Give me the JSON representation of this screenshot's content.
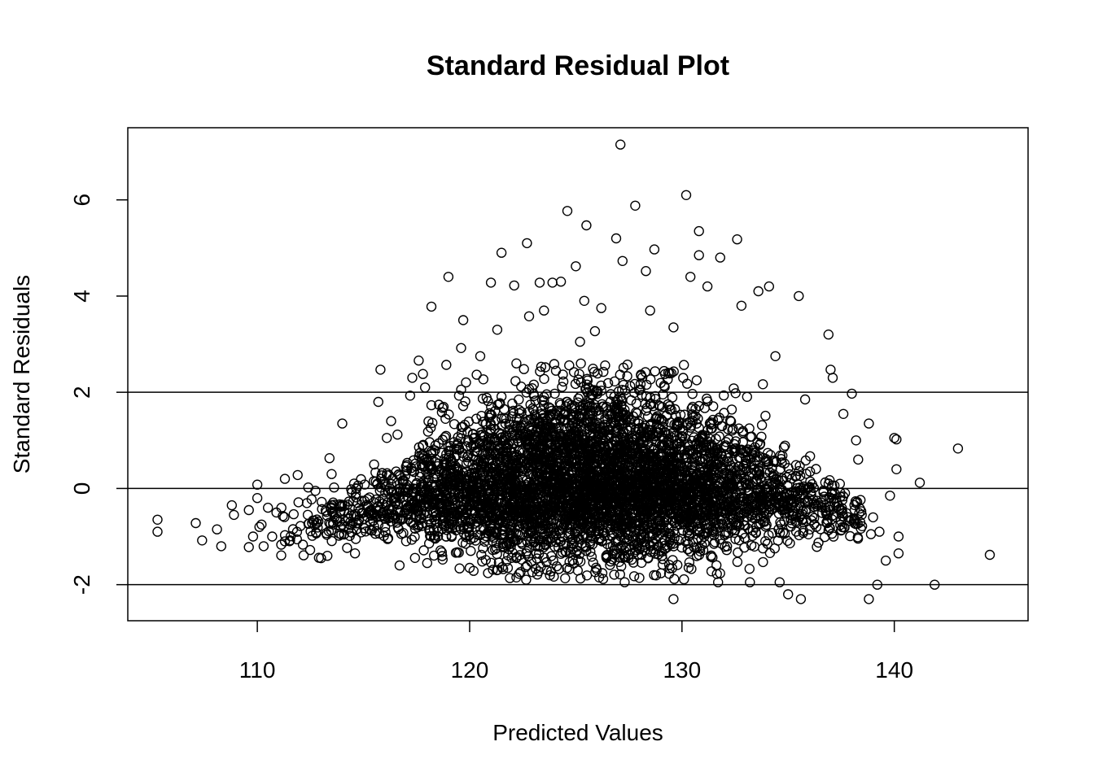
{
  "chart_data": {
    "type": "scatter",
    "title": "Standard Residual Plot",
    "xlabel": "Predicted Values",
    "ylabel": "Standard Residuals",
    "xlim": [
      103.9,
      146.3
    ],
    "ylim": [
      -2.75,
      7.5
    ],
    "x_ticks": [
      110,
      120,
      130,
      140
    ],
    "x_tick_labels": [
      "110",
      "120",
      "130",
      "140"
    ],
    "y_ticks": [
      -2,
      0,
      2,
      4,
      6
    ],
    "y_tick_labels": [
      "-2",
      "0",
      "2",
      "4",
      "6"
    ],
    "reference_lines": [
      -2,
      0,
      2
    ],
    "grid": false,
    "legend": "none",
    "marker": "open-circle",
    "colors": {
      "points": "#000000",
      "lines": "#000000",
      "background": "#ffffff"
    },
    "dense_cloud": {
      "n": 5000,
      "x_center": 125.8,
      "x_spread": 5.4,
      "x_range": [
        111,
        138.5
      ],
      "residual_skew": "right"
    },
    "points": [
      [
        105.3,
        -0.65
      ],
      [
        105.3,
        -0.9
      ],
      [
        107.1,
        -0.72
      ],
      [
        107.4,
        -1.08
      ],
      [
        108.1,
        -0.85
      ],
      [
        108.3,
        -1.2
      ],
      [
        108.8,
        -0.35
      ],
      [
        108.9,
        -0.55
      ],
      [
        109.6,
        -0.45
      ],
      [
        109.6,
        -1.22
      ],
      [
        109.8,
        -1.0
      ],
      [
        110.0,
        -0.2
      ],
      [
        110.0,
        0.08
      ],
      [
        110.1,
        -0.8
      ],
      [
        110.2,
        -0.75
      ],
      [
        110.3,
        -1.2
      ],
      [
        110.5,
        -0.4
      ],
      [
        110.7,
        -1.0
      ],
      [
        110.9,
        -0.5
      ],
      [
        111.3,
        -1.1
      ],
      [
        111.3,
        0.2
      ],
      [
        111.9,
        0.28
      ],
      [
        112.4,
        0.02
      ],
      [
        112.9,
        -1.44
      ],
      [
        113.3,
        -1.4
      ],
      [
        113.4,
        0.63
      ],
      [
        113.5,
        0.3
      ],
      [
        114.0,
        1.35
      ],
      [
        115.5,
        0.5
      ],
      [
        115.7,
        1.8
      ],
      [
        115.8,
        2.47
      ],
      [
        116.1,
        1.05
      ],
      [
        116.3,
        1.4
      ],
      [
        116.6,
        1.12
      ],
      [
        117.2,
        1.93
      ],
      [
        117.3,
        2.3
      ],
      [
        117.6,
        2.66
      ],
      [
        117.8,
        2.38
      ],
      [
        117.9,
        2.1
      ],
      [
        118.2,
        1.73
      ],
      [
        118.2,
        3.78
      ],
      [
        118.9,
        2.57
      ],
      [
        119.0,
        4.4
      ],
      [
        119.5,
        1.93
      ],
      [
        119.6,
        2.92
      ],
      [
        119.7,
        3.5
      ],
      [
        120.5,
        2.75
      ],
      [
        121.0,
        4.28
      ],
      [
        121.3,
        3.3
      ],
      [
        121.5,
        4.9
      ],
      [
        122.1,
        4.22
      ],
      [
        122.2,
        2.6
      ],
      [
        122.7,
        5.1
      ],
      [
        122.8,
        3.58
      ],
      [
        123.3,
        4.28
      ],
      [
        123.5,
        3.7
      ],
      [
        123.9,
        4.28
      ],
      [
        124.3,
        4.3
      ],
      [
        124.6,
        5.77
      ],
      [
        125.0,
        4.62
      ],
      [
        125.2,
        3.05
      ],
      [
        125.4,
        3.9
      ],
      [
        125.5,
        5.47
      ],
      [
        125.9,
        3.27
      ],
      [
        126.2,
        3.75
      ],
      [
        126.9,
        5.2
      ],
      [
        127.1,
        7.15
      ],
      [
        127.2,
        4.73
      ],
      [
        127.8,
        5.88
      ],
      [
        128.3,
        4.52
      ],
      [
        128.5,
        3.7
      ],
      [
        128.7,
        4.97
      ],
      [
        129.6,
        3.35
      ],
      [
        130.2,
        6.1
      ],
      [
        130.4,
        4.4
      ],
      [
        130.8,
        5.35
      ],
      [
        130.8,
        4.85
      ],
      [
        131.2,
        4.2
      ],
      [
        131.8,
        4.8
      ],
      [
        132.6,
        5.18
      ],
      [
        132.8,
        3.8
      ],
      [
        133.6,
        4.1
      ],
      [
        134.1,
        4.2
      ],
      [
        134.4,
        2.75
      ],
      [
        135.5,
        4.0
      ],
      [
        135.8,
        1.85
      ],
      [
        136.9,
        3.2
      ],
      [
        137.0,
        2.47
      ],
      [
        137.1,
        2.3
      ],
      [
        137.6,
        1.55
      ],
      [
        138.0,
        1.97
      ],
      [
        138.2,
        1.0
      ],
      [
        138.3,
        0.6
      ],
      [
        138.4,
        -0.7
      ],
      [
        138.8,
        1.35
      ],
      [
        138.9,
        -0.95
      ],
      [
        139.0,
        -0.6
      ],
      [
        139.2,
        -2.0
      ],
      [
        139.3,
        -0.9
      ],
      [
        139.6,
        -1.5
      ],
      [
        139.8,
        -0.15
      ],
      [
        140.0,
        1.05
      ],
      [
        140.1,
        1.02
      ],
      [
        140.1,
        0.4
      ],
      [
        140.2,
        -1.0
      ],
      [
        140.2,
        -1.35
      ],
      [
        141.2,
        0.12
      ],
      [
        141.9,
        -2.0
      ],
      [
        143.0,
        0.83
      ],
      [
        144.5,
        -1.38
      ],
      [
        129.6,
        -2.3
      ],
      [
        138.8,
        -2.3
      ],
      [
        135.6,
        -2.3
      ],
      [
        135.0,
        -2.2
      ],
      [
        131.7,
        -1.95
      ],
      [
        127.3,
        -1.95
      ],
      [
        126.1,
        -1.85
      ],
      [
        133.2,
        -1.95
      ],
      [
        122.2,
        -1.85
      ],
      [
        134.6,
        -1.95
      ],
      [
        120.0,
        -1.65
      ],
      [
        118.0,
        -1.55
      ],
      [
        116.7,
        -1.6
      ],
      [
        114.6,
        -1.35
      ],
      [
        113.0,
        -1.45
      ]
    ]
  }
}
